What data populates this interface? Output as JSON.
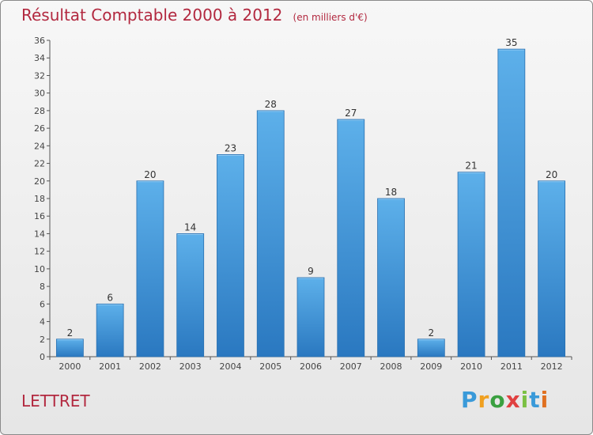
{
  "page": {
    "title": "Résultat Comptable 2000 à 2012",
    "subtitle": "(en milliers d'€)",
    "town": "LETTRET"
  },
  "logo": {
    "text": "Proxiti",
    "letters": [
      "P",
      "r",
      "o",
      "x",
      "i",
      "t",
      "i"
    ],
    "colors": [
      "#3a9ad9",
      "#f0a020",
      "#3aa040",
      "#e04040",
      "#7ac043",
      "#3a9ad9",
      "#e07020"
    ]
  },
  "chart_data": {
    "type": "bar",
    "title": "Résultat Comptable 2000 à 2012",
    "subtitle": "(en milliers d'€)",
    "xlabel": "",
    "ylabel": "",
    "categories": [
      "2000",
      "2001",
      "2002",
      "2003",
      "2004",
      "2005",
      "2006",
      "2007",
      "2008",
      "2009",
      "2010",
      "2011",
      "2012"
    ],
    "values": [
      2,
      6,
      20,
      14,
      23,
      28,
      9,
      27,
      18,
      2,
      21,
      35,
      20
    ],
    "ylim": [
      0,
      36
    ],
    "yticks": [
      0,
      2,
      4,
      6,
      8,
      10,
      12,
      14,
      16,
      18,
      20,
      22,
      24,
      26,
      28,
      30,
      32,
      34,
      36
    ],
    "grid": false,
    "bar_color": "#4a9fe0"
  }
}
